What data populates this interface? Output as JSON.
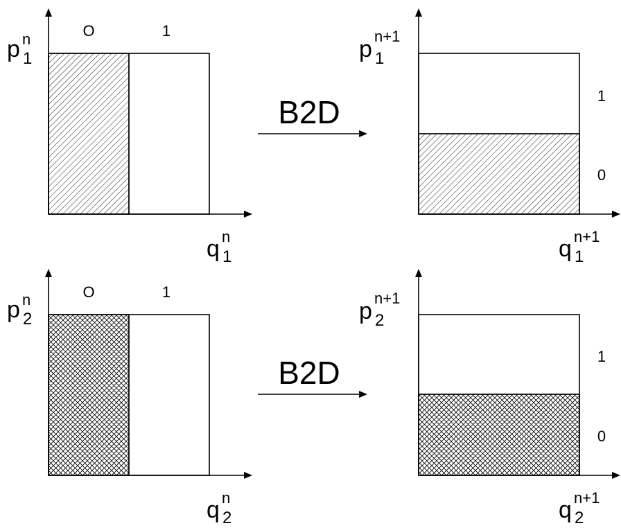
{
  "colors": {
    "ink": "#000000",
    "background": "#ffffff",
    "hatch": "#000000"
  },
  "panels": [
    {
      "id": "row1",
      "left": {
        "y_label": {
          "base": "p",
          "sup": "n",
          "sub": "1"
        },
        "x_label": {
          "base": "q",
          "sup": "n",
          "sub": "1"
        },
        "regions": [
          "O",
          "1"
        ],
        "shaded_region": "0",
        "hatch": "diagonal"
      },
      "operator": "B2D",
      "right": {
        "y_label": {
          "base": "p",
          "sup": "n+1",
          "sub": "1"
        },
        "x_label": {
          "base": "q",
          "sup": "n+1",
          "sub": "1"
        },
        "regions": [
          "1",
          "0"
        ],
        "shaded_region": "0",
        "hatch": "diagonal"
      }
    },
    {
      "id": "row2",
      "left": {
        "y_label": {
          "base": "p",
          "sup": "n",
          "sub": "2"
        },
        "x_label": {
          "base": "q",
          "sup": "n",
          "sub": "2"
        },
        "regions": [
          "O",
          "1"
        ],
        "shaded_region": "0",
        "hatch": "crosshatch"
      },
      "operator": "B2D",
      "right": {
        "y_label": {
          "base": "p",
          "sup": "n+1",
          "sub": "2"
        },
        "x_label": {
          "base": "q",
          "sup": "n+1",
          "sub": "2"
        },
        "regions": [
          "1",
          "0"
        ],
        "shaded_region": "0",
        "hatch": "crosshatch"
      }
    }
  ]
}
